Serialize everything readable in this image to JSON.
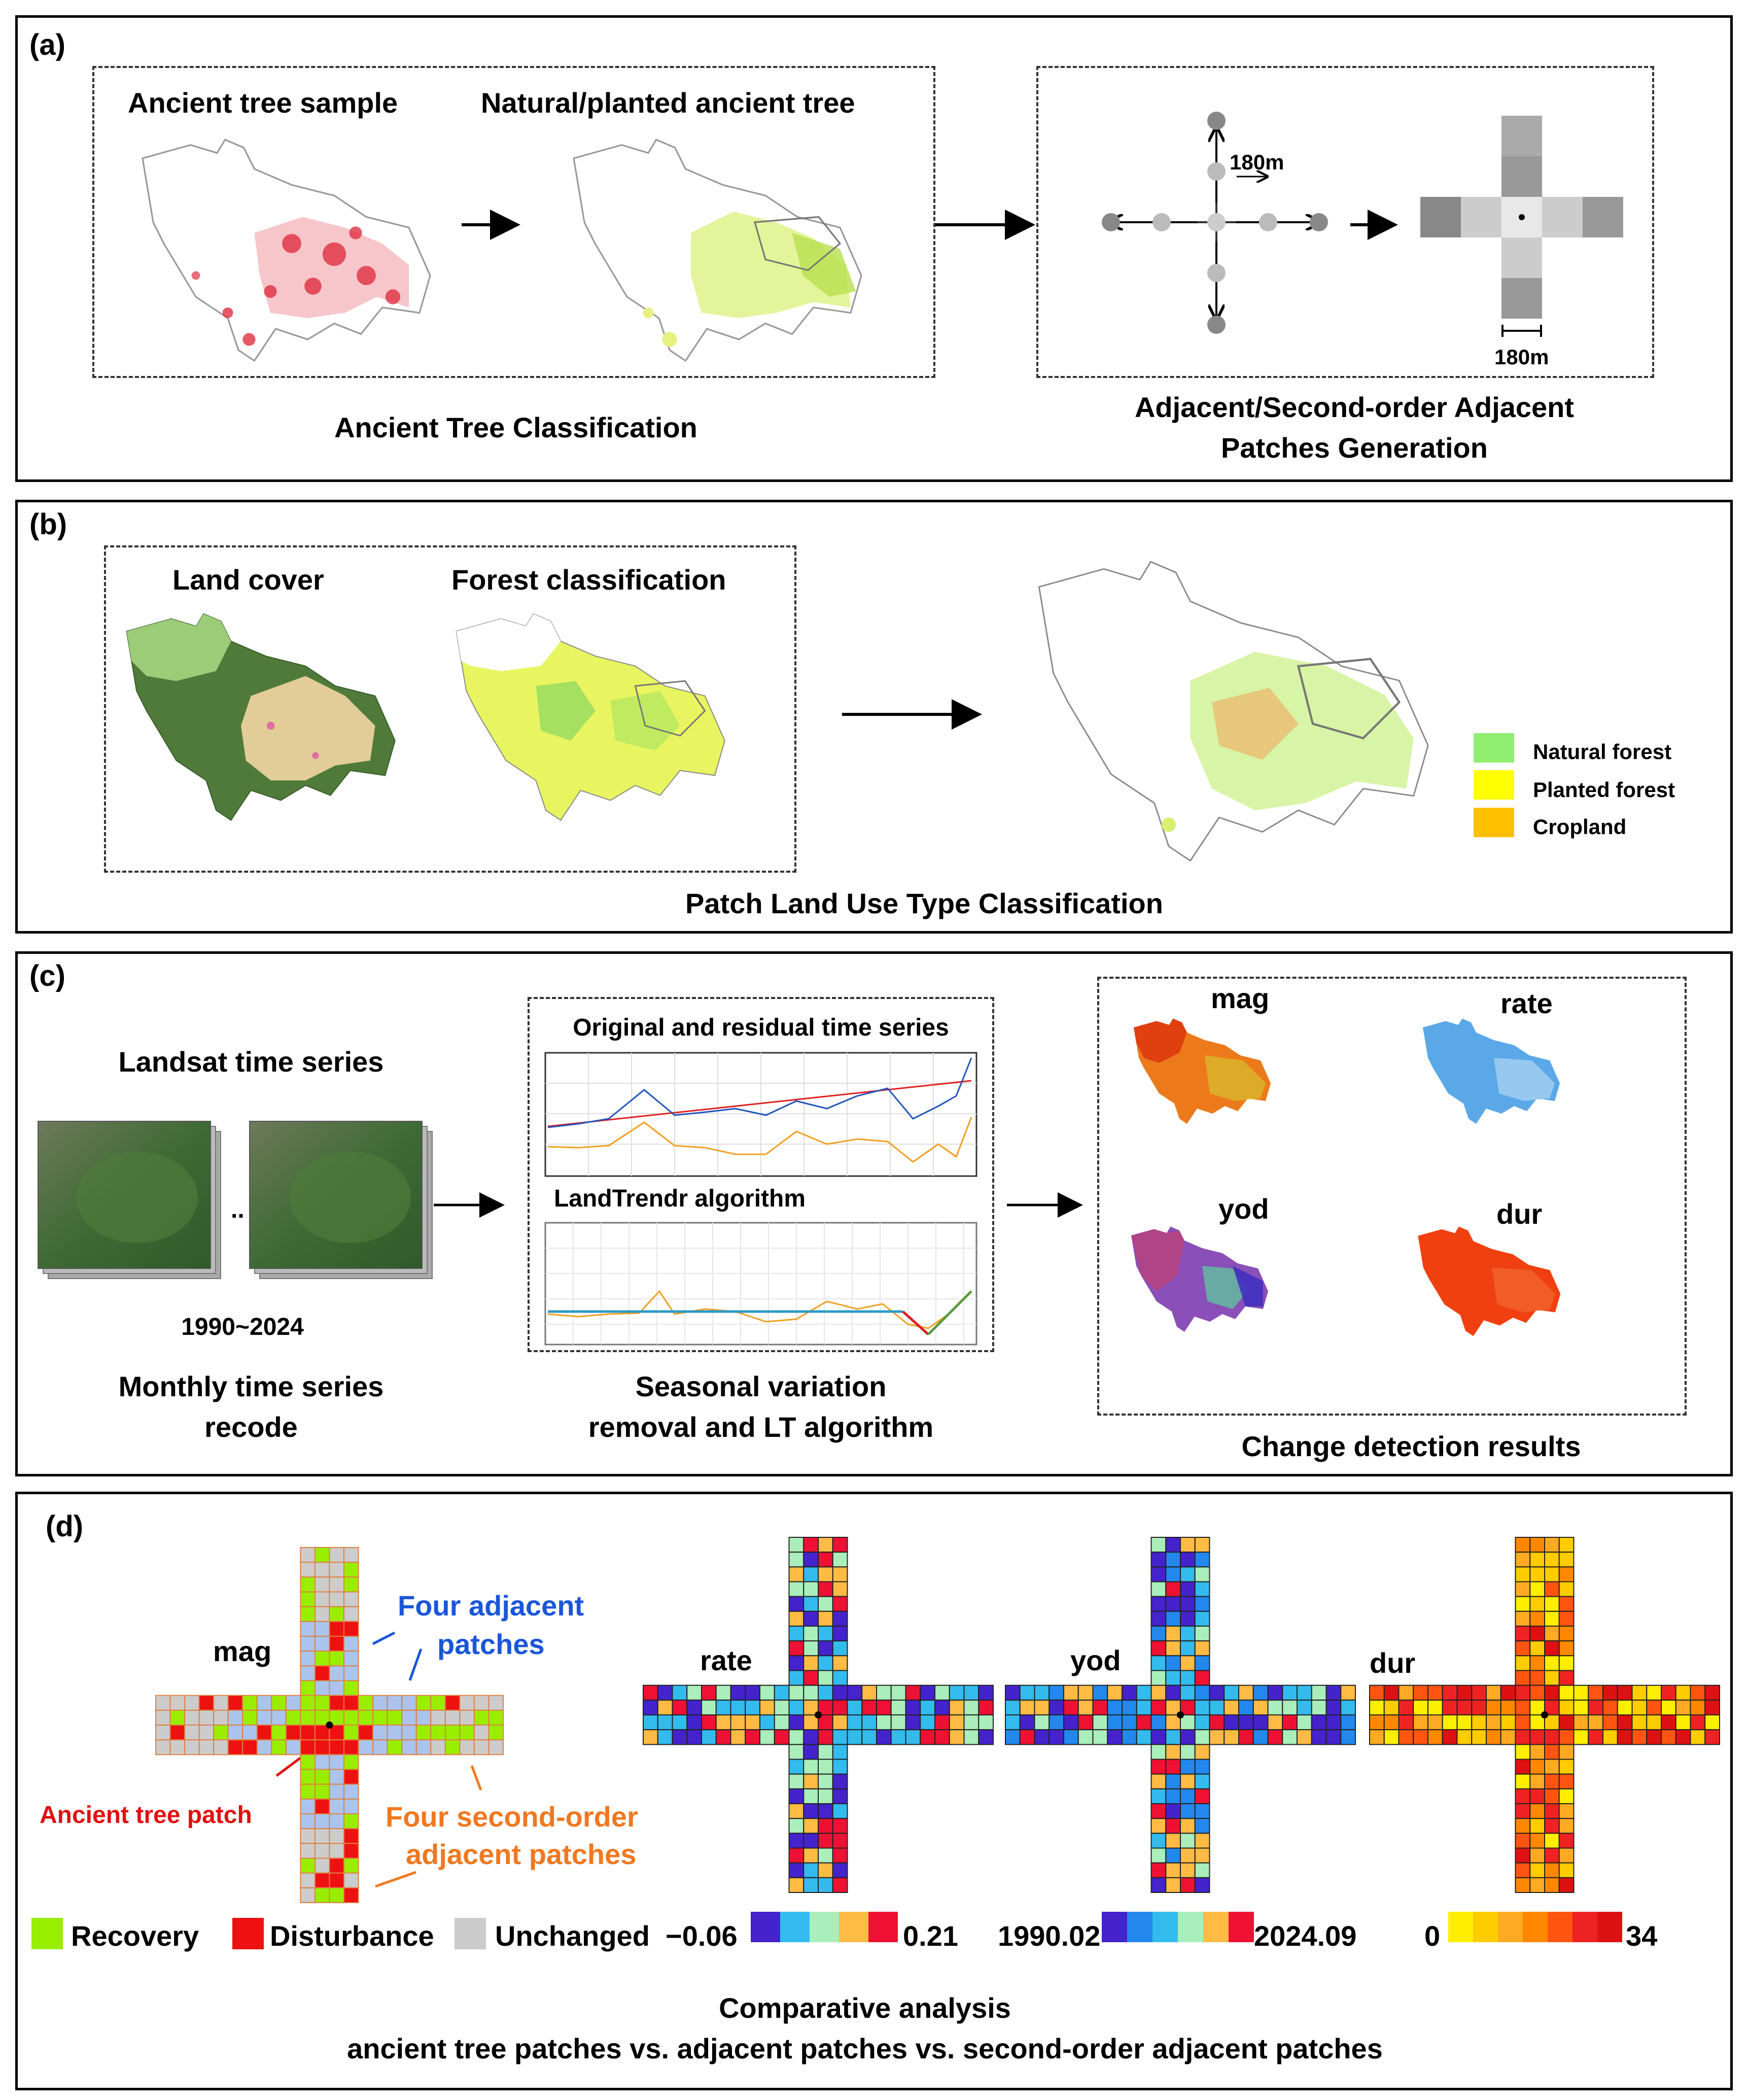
{
  "panel_a": {
    "label": "(a)",
    "sample_title": "Ancient tree sample",
    "natural_title": "Natural/planted ancient tree",
    "classification_caption": "Ancient Tree Classification",
    "distance_label_top": "180m",
    "distance_label_bottom": "180m",
    "patches_caption_line1": "Adjacent/Second-order Adjacent",
    "patches_caption_line2": "Patches Generation"
  },
  "panel_b": {
    "label": "(b)",
    "landcover_title": "Land cover",
    "forest_title": "Forest classification",
    "caption": "Patch Land Use Type Classification",
    "legend": [
      {
        "label": "Natural forest",
        "color": "#90ee70"
      },
      {
        "label": "Planted forest",
        "color": "#ffff00"
      },
      {
        "label": "Cropland",
        "color": "#ffc000"
      }
    ]
  },
  "panel_c": {
    "label": "(c)",
    "landsat_title": "Landsat time series",
    "year_range": "1990~2024",
    "recode_line1": "Monthly time series",
    "recode_line2": "recode",
    "ts_title": "Original and residual time series",
    "lt_title": "LandTrendr algorithm",
    "seasonal_line1": "Seasonal variation",
    "seasonal_line2": "removal and LT algorithm",
    "map_labels": [
      "mag",
      "rate",
      "yod",
      "dur"
    ],
    "results_caption": "Change detection results"
  },
  "panel_d": {
    "label": "(d)",
    "mag_label": "mag",
    "rate_label": "rate",
    "yod_label": "yod",
    "dur_label": "dur",
    "four_adjacent_line1": "Four adjacent",
    "four_adjacent_line2": "patches",
    "ancient_patch": "Ancient tree patch",
    "second_order_line1": "Four second-order",
    "second_order_line2": "adjacent patches",
    "legend": [
      {
        "label": "Recovery",
        "color": "#99ee00"
      },
      {
        "label": "Disturbance",
        "color": "#ee1111"
      },
      {
        "label": "Unchanged",
        "color": "#cccccc"
      }
    ],
    "rate_min": "−0.06",
    "rate_max": "0.21",
    "rate_colors": [
      "#4422cc",
      "#33bbee",
      "#aaeebb",
      "#ffbb44",
      "#ee1133"
    ],
    "yod_min": "1990.02",
    "yod_max": "2024.09",
    "yod_colors": [
      "#4422cc",
      "#2288ee",
      "#33bbee",
      "#aaeebb",
      "#ffbb44",
      "#ee1133"
    ],
    "dur_min": "0",
    "dur_max": "34",
    "dur_colors": [
      "#ffee00",
      "#ffcc00",
      "#ffaa22",
      "#ff8800",
      "#ff5511",
      "#ee2222",
      "#dd1111"
    ],
    "caption_line1": "Comparative analysis",
    "caption_line2": "ancient tree patches vs. adjacent patches vs. second-order adjacent patches"
  }
}
